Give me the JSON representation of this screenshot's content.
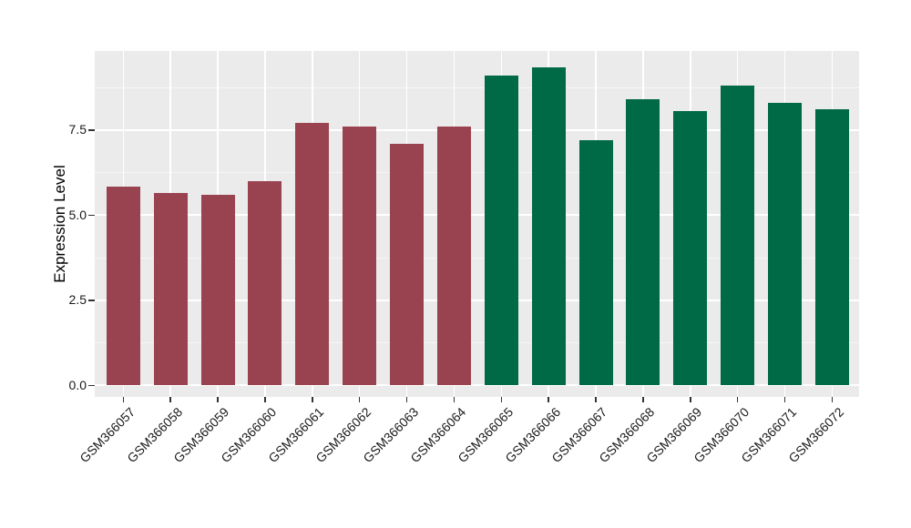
{
  "chart_data": {
    "type": "bar",
    "title": "",
    "xlabel": "",
    "ylabel": "Expression Level",
    "categories": [
      "GSM366057",
      "GSM366058",
      "GSM366059",
      "GSM366060",
      "GSM366061",
      "GSM366062",
      "GSM366063",
      "GSM366064",
      "GSM366065",
      "GSM366066",
      "GSM366067",
      "GSM366068",
      "GSM366069",
      "GSM366070",
      "GSM366071",
      "GSM366072"
    ],
    "values": [
      5.85,
      5.65,
      5.6,
      6.0,
      7.7,
      7.6,
      7.1,
      7.6,
      9.1,
      9.35,
      7.2,
      8.4,
      8.05,
      8.8,
      8.3,
      8.1
    ],
    "bar_colors": [
      "#9A4350",
      "#9A4350",
      "#9A4350",
      "#9A4350",
      "#9A4350",
      "#9A4350",
      "#9A4350",
      "#9A4350",
      "#006A46",
      "#006A46",
      "#006A46",
      "#006A46",
      "#006A46",
      "#006A46",
      "#006A46",
      "#006A46"
    ],
    "yticks": {
      "values": [
        0,
        2.5,
        5,
        7.5
      ],
      "labels": [
        "0.0",
        "2.5",
        "5.0",
        "7.5"
      ]
    },
    "yticks_minor": [
      1.25,
      3.75,
      6.25,
      8.75
    ],
    "ylim": [
      0,
      9.8
    ],
    "grid": true,
    "legend_position": "none",
    "colors": {
      "panel_bg": "#EBEBEB",
      "grid_major": "#FFFFFF",
      "grid_minor": "#F6F6F6",
      "axis_text": "#1A1A1A",
      "tick_mark": "#333333",
      "figure_bg": "#FFFFFF"
    }
  }
}
